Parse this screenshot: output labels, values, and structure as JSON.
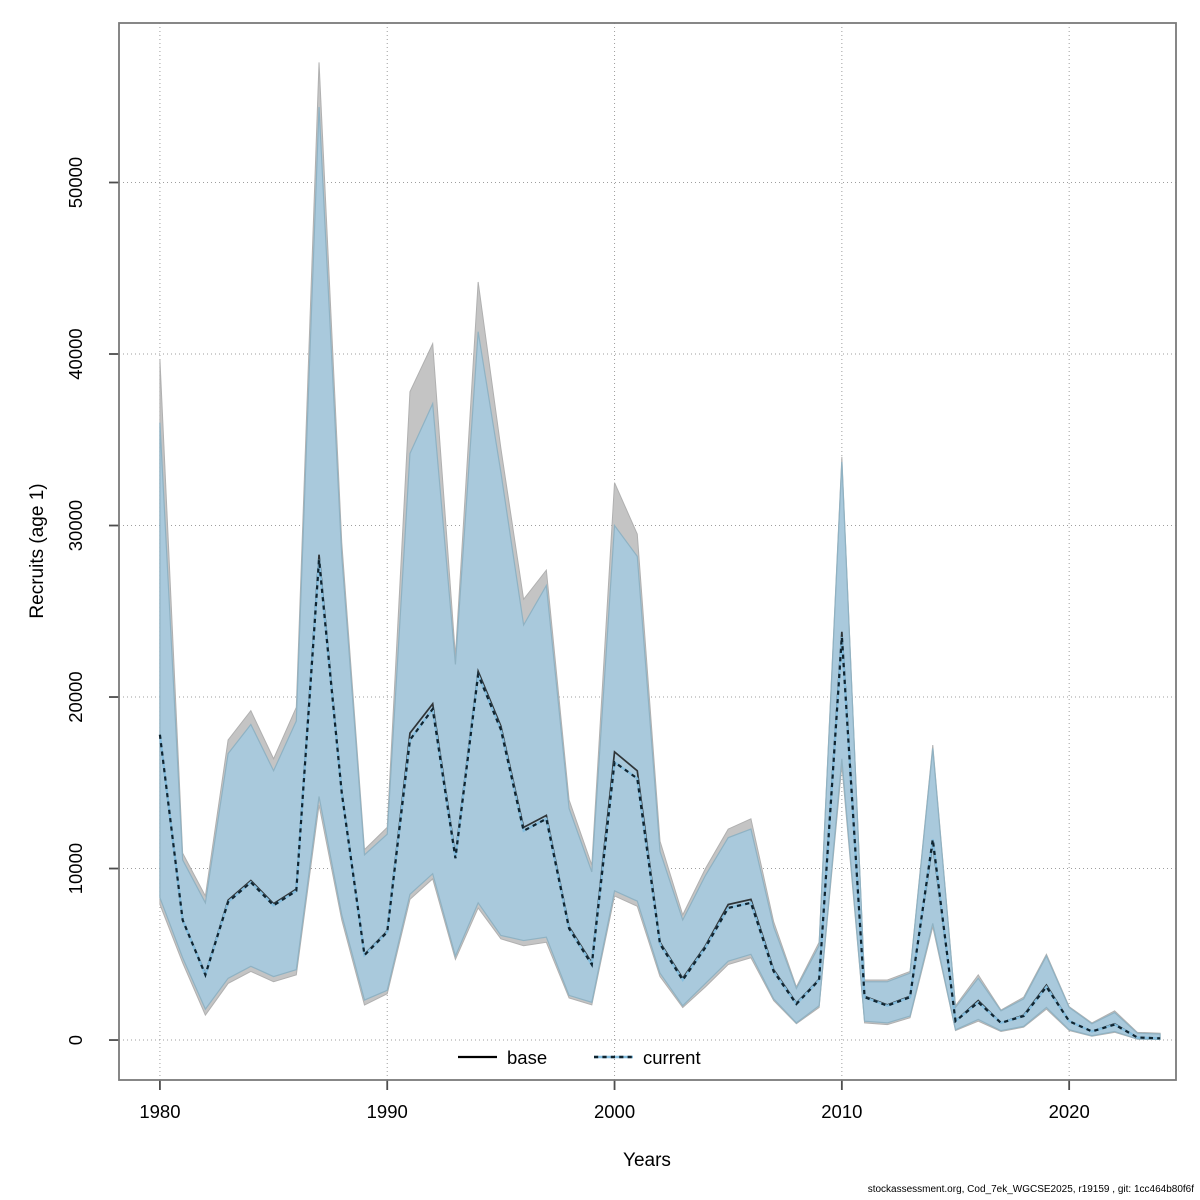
{
  "footer": {
    "text": "stockassessment.org, Cod_7ek_WGCSE2025, r19159 , git: 1cc464b80f6f"
  },
  "chart_data": {
    "type": "line",
    "title": "",
    "xlabel": "Years",
    "ylabel": "Recruits (age 1)",
    "x_tick_labels": [
      "1980",
      "1990",
      "2000",
      "2010",
      "2020"
    ],
    "x_ticks": [
      1980,
      1990,
      2000,
      2010,
      2020
    ],
    "y_tick_labels": [
      "0",
      "10000",
      "20000",
      "30000",
      "40000",
      "50000"
    ],
    "y_ticks": [
      0,
      10000,
      20000,
      30000,
      40000,
      50000
    ],
    "x_range": [
      1978.2,
      2024.7
    ],
    "y_range": [
      -2330,
      59300
    ],
    "grid": "dotted",
    "legend": {
      "position": "bottom-center-inside",
      "entries": [
        {
          "label": "base",
          "style": "solid-black-line"
        },
        {
          "label": "current",
          "style": "dashed-blue-line"
        }
      ]
    },
    "years": [
      1980,
      1981,
      1982,
      1983,
      1984,
      1985,
      1986,
      1987,
      1988,
      1989,
      1990,
      1991,
      1992,
      1993,
      1994,
      1995,
      1996,
      1997,
      1998,
      1999,
      2000,
      2001,
      2002,
      2003,
      2004,
      2005,
      2006,
      2007,
      2008,
      2009,
      2010,
      2011,
      2012,
      2013,
      2014,
      2015,
      2016,
      2017,
      2018,
      2019,
      2020,
      2021,
      2022,
      2023,
      2024
    ],
    "series": [
      {
        "name": "base",
        "line_style": "solid",
        "mean": [
          17800,
          7000,
          3850,
          8150,
          9300,
          7950,
          8800,
          28300,
          14500,
          5000,
          6350,
          17900,
          19600,
          10750,
          21500,
          18300,
          12400,
          13100,
          6600,
          4500,
          16800,
          15700,
          5700,
          3600,
          5500,
          7900,
          8200,
          4100,
          2150,
          3550,
          23800,
          2550,
          2050,
          2550,
          11500,
          1100,
          2300,
          1000,
          1450,
          3200,
          1100,
          500,
          950,
          150,
          100
        ],
        "lo": [
          7900,
          4500,
          1450,
          3300,
          4000,
          3400,
          3800,
          13700,
          7000,
          2040,
          2700,
          8200,
          9400,
          4700,
          7700,
          5900,
          5500,
          5700,
          2450,
          2050,
          8400,
          7800,
          3700,
          1900,
          3100,
          4400,
          4800,
          2300,
          950,
          1900,
          16000,
          1000,
          900,
          1300,
          6600,
          550,
          1100,
          500,
          750,
          1800,
          550,
          220,
          450,
          50,
          30
        ],
        "hi": [
          39700,
          10900,
          8400,
          17500,
          19200,
          16400,
          19400,
          57000,
          29000,
          11100,
          12400,
          37800,
          40600,
          22400,
          44200,
          34500,
          25700,
          27400,
          14000,
          10200,
          32500,
          29500,
          11600,
          7300,
          10000,
          12300,
          12900,
          6900,
          3100,
          5700,
          34000,
          3500,
          3500,
          4000,
          17200,
          2000,
          3800,
          1750,
          2500,
          5000,
          1950,
          1000,
          1700,
          450,
          400
        ]
      },
      {
        "name": "current",
        "line_style": "dashed",
        "mean": [
          17800,
          7000,
          3800,
          8050,
          9200,
          7850,
          8700,
          28000,
          14400,
          4950,
          6300,
          17500,
          19300,
          10600,
          21300,
          18100,
          12200,
          12900,
          6500,
          4400,
          16200,
          15250,
          5600,
          3500,
          5400,
          7700,
          8000,
          4000,
          2100,
          3500,
          23500,
          2500,
          2000,
          2500,
          11700,
          1100,
          2200,
          1000,
          1400,
          3100,
          1100,
          500,
          900,
          150,
          100
        ],
        "lo": [
          8300,
          4800,
          1800,
          3600,
          4300,
          3700,
          4100,
          14200,
          7300,
          2330,
          2900,
          8500,
          9700,
          4900,
          8000,
          6100,
          5800,
          6000,
          2600,
          2200,
          8700,
          8100,
          3900,
          2000,
          3300,
          4600,
          5000,
          2400,
          1000,
          2000,
          16400,
          1100,
          1000,
          1400,
          6800,
          600,
          1200,
          550,
          800,
          1900,
          600,
          250,
          500,
          60,
          40
        ],
        "hi": [
          36000,
          10500,
          8000,
          16700,
          18400,
          15700,
          18600,
          54400,
          28200,
          10800,
          12000,
          34200,
          37100,
          21900,
          41300,
          33100,
          24200,
          26500,
          13500,
          9800,
          30000,
          28200,
          11000,
          7000,
          9600,
          11800,
          12300,
          6600,
          3000,
          5500,
          33700,
          3400,
          3400,
          3900,
          17000,
          1900,
          3600,
          1700,
          2400,
          4900,
          1900,
          950,
          1600,
          400,
          350
        ]
      }
    ],
    "colors": {
      "base_band": "#c4c4c4",
      "base_band_edge": "#b0b0b0",
      "current_band": "#a9c9dc",
      "current_band_edge": "#8fb2c3",
      "base_line": "#1a1a1a",
      "current_line_light": "#85bedf",
      "current_line_dark": "#0f2430",
      "grid": "#9e9e9e",
      "frame": "#7a7a7a",
      "tick": "#4d4d4d"
    }
  }
}
